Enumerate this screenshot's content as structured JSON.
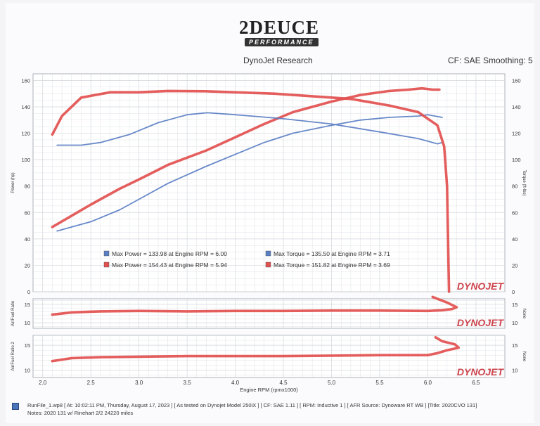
{
  "header": {
    "logo_text": "2DEUCE",
    "logo_subtitle": "PERFORMANCE",
    "title": "DynoJet Research",
    "correction": "CF: SAE Smoothing: 5"
  },
  "footer": {
    "line1": "RunFile_1.wp8 [ At: 10:02:11 PM, Thursday, August 17, 2023 ] [ As tested on Dynojet Model 250iX ] [ CF: SAE 1.11 ] [ RPM: Inductive 1 ] [ AFR Source: Dynoware RT WB ] [Title: 2020CVO 131]",
    "line2": "Notes: 2020 131 w/ Rinehart 2/2 24220 miles"
  },
  "watermark": "DYNOJET",
  "colors": {
    "blue": "#5b7fc4",
    "red": "#e2504f",
    "grid": "#d3d6dc"
  },
  "chart_data": [
    {
      "type": "line",
      "xlabel": "Engine RPM (rpmx1000)",
      "ylabel": "Power (hp)",
      "y2label": "Torque (ft-lbs)",
      "xlim": [
        1.9,
        6.8
      ],
      "ylim": [
        0,
        165
      ],
      "x_ticks": [
        "2.0",
        "2.5",
        "3.0",
        "3.5",
        "4.0",
        "4.5",
        "5.0",
        "5.5",
        "6.0",
        "6.5"
      ],
      "y_ticks": [
        "0",
        "20",
        "40",
        "60",
        "80",
        "100",
        "120",
        "140",
        "160"
      ],
      "y2_ticks": [
        "0",
        "20",
        "40",
        "60",
        "80",
        "100",
        "120",
        "140",
        "160"
      ],
      "grid": true,
      "legend": [
        {
          "color": "blue",
          "text": "Max Power = 133.98 at Engine RPM = 6.00"
        },
        {
          "color": "red",
          "text": "Max Power = 154.43 at Engine RPM = 5.94"
        },
        {
          "color": "blue",
          "text": "Max Torque = 135.50 at Engine RPM = 3.71"
        },
        {
          "color": "red",
          "text": "Max Torque = 151.82 at Engine RPM = 3.69"
        }
      ],
      "series": [
        {
          "color": "blue",
          "kind": "power",
          "x": [
            2.15,
            2.5,
            2.8,
            3.0,
            3.3,
            3.7,
            4.0,
            4.3,
            4.6,
            5.0,
            5.3,
            5.6,
            5.9,
            6.0,
            6.15
          ],
          "y": [
            46,
            53,
            62,
            70,
            82,
            95,
            104,
            113,
            120,
            126,
            130,
            132,
            133,
            134,
            132
          ]
        },
        {
          "color": "red",
          "kind": "power",
          "x": [
            2.1,
            2.5,
            2.8,
            3.0,
            3.3,
            3.7,
            4.0,
            4.3,
            4.6,
            5.0,
            5.3,
            5.6,
            5.8,
            5.94,
            6.05,
            6.12
          ],
          "y": [
            49,
            66,
            78,
            85,
            96,
            107,
            117,
            127,
            136,
            144,
            149,
            152,
            153,
            154,
            153,
            153
          ]
        },
        {
          "color": "blue",
          "kind": "torque",
          "x": [
            2.15,
            2.4,
            2.6,
            2.9,
            3.2,
            3.5,
            3.71,
            4.0,
            4.5,
            5.0,
            5.5,
            5.9,
            6.1,
            6.15
          ],
          "y": [
            111,
            111,
            113,
            119,
            128,
            134,
            135.5,
            134,
            131,
            127,
            121,
            116,
            112,
            113
          ]
        },
        {
          "color": "red",
          "kind": "torque",
          "x": [
            2.1,
            2.2,
            2.4,
            2.7,
            3.0,
            3.3,
            3.69,
            4.0,
            4.4,
            4.8,
            5.2,
            5.6,
            5.9,
            6.1,
            6.17,
            6.2,
            6.22
          ],
          "y": [
            119,
            133,
            147,
            151,
            151,
            152,
            151.8,
            151,
            150,
            148,
            146,
            141,
            136,
            126,
            110,
            80,
            0
          ]
        }
      ]
    },
    {
      "type": "line",
      "ylabel": "Air/Fuel Ratio",
      "y2label": "None",
      "ylim": [
        8.5,
        16.5
      ],
      "y_ticks": [
        "10",
        "15"
      ],
      "y2_ticks": [
        "10",
        "15"
      ],
      "grid": true,
      "series": [
        {
          "color": "red",
          "x": [
            2.1,
            2.3,
            2.6,
            3.0,
            3.5,
            4.0,
            4.5,
            5.0,
            5.5,
            6.0,
            6.15,
            6.25,
            6.3,
            6.2,
            6.05
          ],
          "y": [
            12.2,
            12.8,
            13.1,
            13.2,
            13.1,
            13.2,
            13.2,
            13.3,
            13.3,
            13.2,
            13.4,
            13.7,
            14.2,
            15.5,
            17.0
          ]
        }
      ]
    },
    {
      "type": "line",
      "ylabel": "Air/Fuel Ratio 2",
      "y2label": "None",
      "ylim": [
        8.5,
        17
      ],
      "y_ticks": [
        "10",
        "15"
      ],
      "y2_ticks": [
        "10",
        "15"
      ],
      "grid": true,
      "series": [
        {
          "color": "red",
          "x": [
            2.1,
            2.3,
            2.6,
            3.0,
            3.5,
            4.0,
            4.5,
            5.0,
            5.5,
            6.0,
            6.1,
            6.2,
            6.32,
            6.28,
            6.15,
            6.08
          ],
          "y": [
            11.8,
            12.4,
            12.6,
            12.7,
            12.8,
            12.8,
            12.8,
            12.9,
            13.0,
            13.0,
            13.4,
            14.0,
            14.5,
            15.2,
            15.8,
            16.6
          ]
        }
      ]
    }
  ]
}
